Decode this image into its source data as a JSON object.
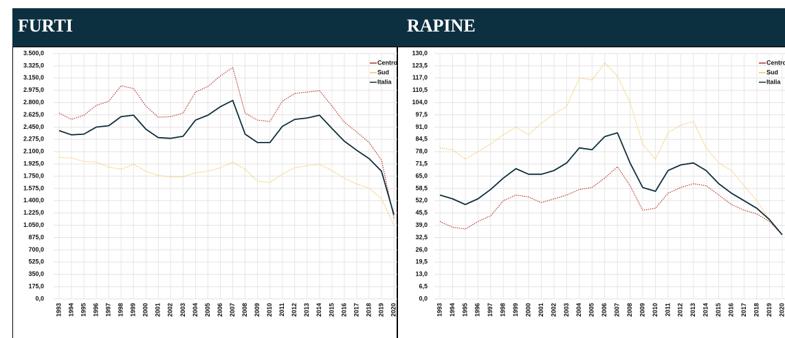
{
  "chart_data": [
    {
      "type": "line",
      "title": "FURTI",
      "categories": [
        "1993",
        "1994",
        "1995",
        "1996",
        "1997",
        "1998",
        "1999",
        "2000",
        "2001",
        "2002",
        "2003",
        "2004",
        "2005",
        "2006",
        "2007",
        "2008",
        "2009",
        "2010",
        "2011",
        "2012",
        "2013",
        "2014",
        "2015",
        "2016",
        "2017",
        "2018",
        "2019",
        "2020"
      ],
      "series": [
        {
          "name": "Centro-Nord",
          "color": "#b8302a",
          "values": [
            2650,
            2560,
            2620,
            2760,
            2820,
            3040,
            3000,
            2750,
            2590,
            2600,
            2650,
            2950,
            3030,
            3180,
            3300,
            2650,
            2550,
            2530,
            2820,
            2930,
            2950,
            2970,
            2750,
            2520,
            2380,
            2230,
            1980,
            1150
          ]
        },
        {
          "name": "Sud",
          "color": "#f2c45a",
          "values": [
            2020,
            2010,
            1960,
            1950,
            1880,
            1850,
            1920,
            1820,
            1760,
            1740,
            1740,
            1800,
            1820,
            1870,
            1950,
            1850,
            1680,
            1660,
            1780,
            1870,
            1900,
            1920,
            1830,
            1720,
            1640,
            1580,
            1430,
            1050
          ]
        },
        {
          "name": "Italia",
          "color": "#0d2d3c",
          "values": [
            2400,
            2340,
            2350,
            2450,
            2470,
            2600,
            2620,
            2420,
            2300,
            2290,
            2320,
            2550,
            2620,
            2740,
            2830,
            2350,
            2230,
            2230,
            2460,
            2560,
            2580,
            2620,
            2430,
            2250,
            2120,
            2000,
            1820,
            1200
          ]
        }
      ],
      "ylim": [
        0,
        3500
      ],
      "yticks": [
        {
          "value": 0,
          "label": "0,0"
        },
        {
          "value": 175,
          "label": "175,0"
        },
        {
          "value": 350,
          "label": "350,0"
        },
        {
          "value": 525,
          "label": "525,0"
        },
        {
          "value": 700,
          "label": "700,0"
        },
        {
          "value": 875,
          "label": "875,0"
        },
        {
          "value": 1050,
          "label": "1.050,0"
        },
        {
          "value": 1225,
          "label": "1.225,0"
        },
        {
          "value": 1400,
          "label": "1.400,0"
        },
        {
          "value": 1575,
          "label": "1.575,0"
        },
        {
          "value": 1750,
          "label": "1.750,0"
        },
        {
          "value": 1925,
          "label": "1.925,0"
        },
        {
          "value": 2100,
          "label": "2.100,0"
        },
        {
          "value": 2275,
          "label": "2.275,0"
        },
        {
          "value": 2450,
          "label": "2.450,0"
        },
        {
          "value": 2625,
          "label": "2.625,0"
        },
        {
          "value": 2800,
          "label": "2.800,0"
        },
        {
          "value": 2975,
          "label": "2.975,0"
        },
        {
          "value": 3150,
          "label": "3.150,0"
        },
        {
          "value": 3325,
          "label": "3.325,0"
        },
        {
          "value": 3500,
          "label": "3.500,0"
        }
      ],
      "grid": true
    },
    {
      "type": "line",
      "title": "RAPINE",
      "categories": [
        "1993",
        "1994",
        "1995",
        "1996",
        "1997",
        "1998",
        "1999",
        "2000",
        "2001",
        "2002",
        "2003",
        "2004",
        "2005",
        "2006",
        "2007",
        "2008",
        "2009",
        "2010",
        "2011",
        "2012",
        "2013",
        "2014",
        "2015",
        "2016",
        "2017",
        "2018",
        "2019",
        "2020"
      ],
      "series": [
        {
          "name": "Centro-Nord",
          "color": "#b8302a",
          "values": [
            41,
            38,
            37,
            41,
            44,
            52,
            55,
            54,
            51,
            53,
            55,
            58,
            59,
            64,
            70,
            60,
            47,
            48,
            56,
            59,
            61,
            60,
            55,
            50,
            47,
            45,
            41,
            34
          ]
        },
        {
          "name": "Sud",
          "color": "#f2c45a",
          "values": [
            80,
            79,
            74,
            78,
            82,
            87,
            91,
            87,
            93,
            98,
            102,
            117,
            116,
            125,
            118,
            104,
            82,
            74,
            88,
            92,
            94,
            80,
            72,
            68,
            60,
            52,
            42,
            34
          ]
        },
        {
          "name": "Italia",
          "color": "#0d2d3c",
          "values": [
            55,
            53,
            50,
            53,
            58,
            64,
            69,
            66,
            66,
            68,
            72,
            80,
            79,
            86,
            88,
            72,
            59,
            57,
            68,
            71,
            72,
            68,
            61,
            56,
            52,
            48,
            42,
            34
          ]
        }
      ],
      "ylim": [
        0,
        130
      ],
      "yticks": [
        {
          "value": 0,
          "label": "0,0"
        },
        {
          "value": 6.5,
          "label": "6,5"
        },
        {
          "value": 13,
          "label": "13,0"
        },
        {
          "value": 19.5,
          "label": "19,5"
        },
        {
          "value": 26,
          "label": "26,0"
        },
        {
          "value": 32.5,
          "label": "32,5"
        },
        {
          "value": 39,
          "label": "39,0"
        },
        {
          "value": 45.5,
          "label": "45,5"
        },
        {
          "value": 52,
          "label": "52,0"
        },
        {
          "value": 58.5,
          "label": "58,5"
        },
        {
          "value": 65,
          "label": "65,0"
        },
        {
          "value": 71.5,
          "label": "71,5"
        },
        {
          "value": 78,
          "label": "78,0"
        },
        {
          "value": 84.5,
          "label": "84,5"
        },
        {
          "value": 91,
          "label": "91,0"
        },
        {
          "value": 97.5,
          "label": "97,5"
        },
        {
          "value": 104,
          "label": "104,0"
        },
        {
          "value": 110.5,
          "label": "110,5"
        },
        {
          "value": 117,
          "label": "117,0"
        },
        {
          "value": 123.5,
          "label": "123,5"
        },
        {
          "value": 130,
          "label": "130,0"
        }
      ],
      "grid": true
    }
  ]
}
